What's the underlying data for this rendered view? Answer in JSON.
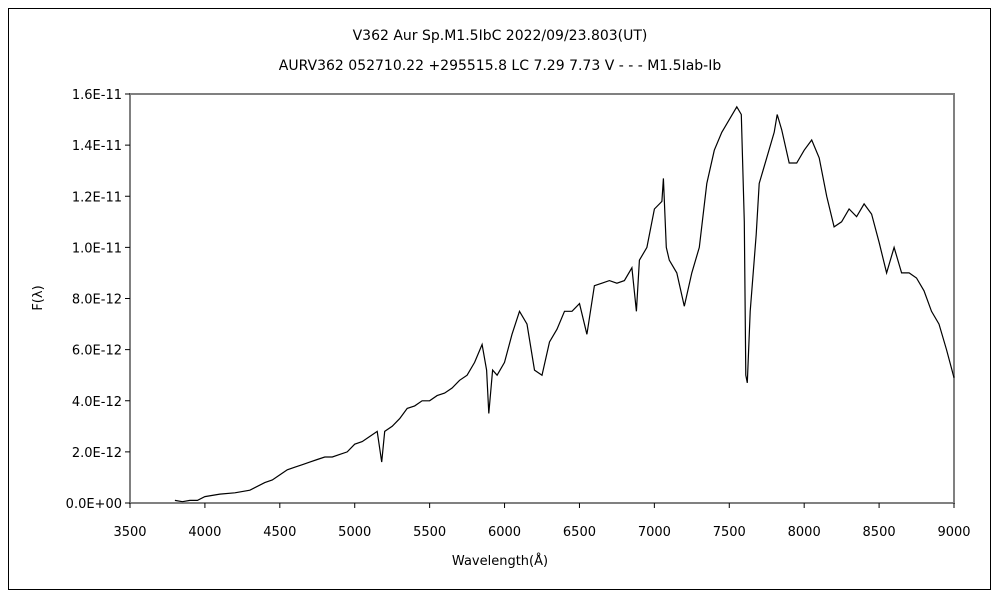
{
  "chart_data": {
    "type": "line",
    "title": "V362 Aur   Sp.M1.5IbC   2022/09/23.803(UT)",
    "subtitle": "AURV362 052710.22 +295515.8 LC 7.29 7.73 V - - - M1.5Iab-Ib",
    "xlabel": "Wavelength(Å)",
    "ylabel": "F(λ)",
    "xlim": [
      3500,
      9000
    ],
    "ylim": [
      0,
      1.6e-11
    ],
    "xticks": [
      3500,
      4000,
      4500,
      5000,
      5500,
      6000,
      6500,
      7000,
      7500,
      8000,
      8500,
      9000
    ],
    "xtick_labels": [
      "3500",
      "4000",
      "4500",
      "5000",
      "5500",
      "6000",
      "6500",
      "7000",
      "7500",
      "8000",
      "8500",
      "9000"
    ],
    "yticks": [
      0,
      2e-12,
      4e-12,
      6e-12,
      8e-12,
      1e-11,
      1.2e-11,
      1.4e-11,
      1.6e-11
    ],
    "ytick_labels": [
      "0.0E+00",
      "2.0E-12",
      "4.0E-12",
      "6.0E-12",
      "8.0E-12",
      "1.0E-11",
      "1.2E-11",
      "1.4E-11",
      "1.6E-11"
    ],
    "grid": false,
    "series": [
      {
        "name": "F(λ)",
        "unit_scale": 1e-12,
        "x": [
          3800,
          3850,
          3900,
          3950,
          4000,
          4100,
          4200,
          4300,
          4400,
          4450,
          4500,
          4550,
          4600,
          4650,
          4700,
          4750,
          4800,
          4850,
          4900,
          4950,
          5000,
          5050,
          5100,
          5150,
          5180,
          5200,
          5250,
          5300,
          5350,
          5400,
          5450,
          5500,
          5550,
          5600,
          5650,
          5700,
          5750,
          5800,
          5850,
          5880,
          5895,
          5920,
          5950,
          6000,
          6050,
          6100,
          6150,
          6200,
          6250,
          6300,
          6350,
          6400,
          6450,
          6500,
          6550,
          6600,
          6650,
          6700,
          6750,
          6800,
          6850,
          6880,
          6900,
          6950,
          7000,
          7050,
          7060,
          7080,
          7100,
          7150,
          7200,
          7250,
          7300,
          7350,
          7400,
          7450,
          7500,
          7550,
          7580,
          7600,
          7610,
          7620,
          7640,
          7680,
          7700,
          7750,
          7800,
          7820,
          7850,
          7900,
          7950,
          8000,
          8050,
          8100,
          8150,
          8200,
          8250,
          8300,
          8350,
          8400,
          8450,
          8500,
          8550,
          8600,
          8650,
          8700,
          8750,
          8800,
          8850,
          8900,
          8950,
          9000
        ],
        "y": [
          0.1,
          0.05,
          0.1,
          0.1,
          0.25,
          0.35,
          0.4,
          0.5,
          0.8,
          0.9,
          1.1,
          1.3,
          1.4,
          1.5,
          1.6,
          1.7,
          1.8,
          1.8,
          1.9,
          2.0,
          2.3,
          2.4,
          2.6,
          2.8,
          1.6,
          2.8,
          3.0,
          3.3,
          3.7,
          3.8,
          4.0,
          4.0,
          4.2,
          4.3,
          4.5,
          4.8,
          5.0,
          5.5,
          6.2,
          5.2,
          3.5,
          5.2,
          5.0,
          5.5,
          6.6,
          7.5,
          7.0,
          5.2,
          5.0,
          6.3,
          6.8,
          7.5,
          7.5,
          7.8,
          6.6,
          8.5,
          8.6,
          8.7,
          8.6,
          8.7,
          9.2,
          7.5,
          9.5,
          10.0,
          11.5,
          11.8,
          12.7,
          10.0,
          9.5,
          9.0,
          7.7,
          9.0,
          10.0,
          12.5,
          13.8,
          14.5,
          15.0,
          15.5,
          15.2,
          11.0,
          5.0,
          4.7,
          7.5,
          10.5,
          12.5,
          13.5,
          14.5,
          15.2,
          14.6,
          13.3,
          13.3,
          13.8,
          14.2,
          13.5,
          12.0,
          10.8,
          11.0,
          11.5,
          11.2,
          11.7,
          11.3,
          10.2,
          9.0,
          10.0,
          9.0,
          9.0,
          8.8,
          8.3,
          7.5,
          7.0,
          6.0,
          4.9
        ]
      }
    ]
  }
}
